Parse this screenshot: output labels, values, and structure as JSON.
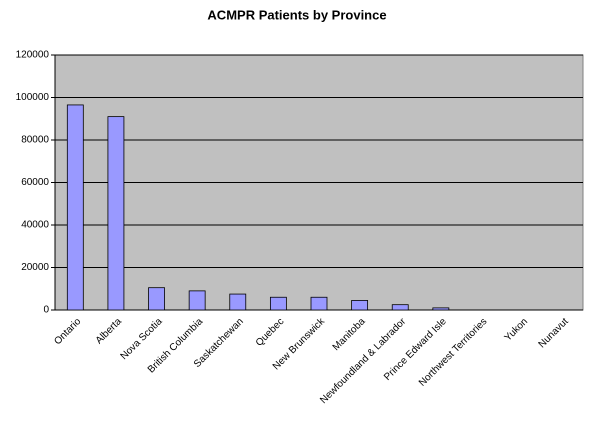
{
  "chart_data": {
    "type": "bar",
    "title": "ACMPR Patients by Province",
    "categories": [
      "Ontario",
      "Alberta",
      "Nova Scotia",
      "British Columbia",
      "Saskatchewan",
      "Quebec",
      "New Brunswick",
      "Manitoba",
      "Newfoundland & Labrador",
      "Prince Edward Isle",
      "Northwest Territories",
      "Yukon",
      "Nunavut"
    ],
    "values": [
      96500,
      91000,
      10500,
      9000,
      7500,
      6000,
      6000,
      4500,
      2500,
      1000,
      0,
      0,
      0
    ],
    "color": "#9999ff",
    "ylim": [
      0,
      120000
    ],
    "yticks": [
      0,
      20000,
      40000,
      60000,
      80000,
      100000,
      120000
    ],
    "grid": true
  }
}
